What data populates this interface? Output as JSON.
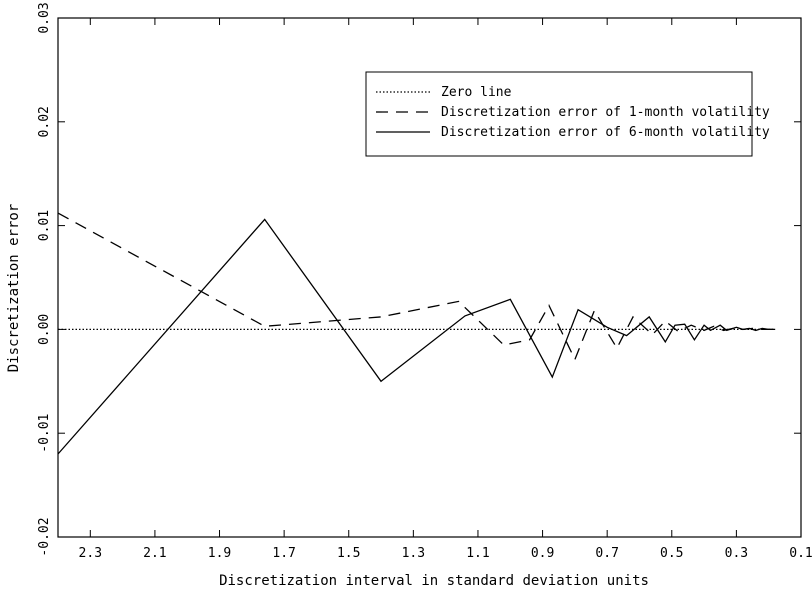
{
  "chart_data": {
    "type": "line",
    "title": "",
    "xlabel": "Discretization interval in standard deviation units",
    "ylabel": "Discretization error",
    "xlim": [
      2.4,
      0.1
    ],
    "ylim": [
      -0.02,
      0.03
    ],
    "x_reversed": true,
    "x_ticks": [
      2.3,
      2.1,
      1.9,
      1.7,
      1.5,
      1.3,
      1.1,
      0.9,
      0.7,
      0.5,
      0.3,
      0.1
    ],
    "x_tick_labels": [
      "2.3",
      "2.1",
      "1.9",
      "1.7",
      "1.5",
      "1.3",
      "1.1",
      "0.9",
      "0.7",
      "0.5",
      "0.3",
      "0.1"
    ],
    "y_ticks": [
      -0.02,
      -0.01,
      0.0,
      0.01,
      0.02,
      0.03
    ],
    "y_tick_labels": [
      "-0.02",
      "-0.01",
      "0.00",
      "0.01",
      "0.02",
      "0.03"
    ],
    "grid": false,
    "legend_position": "top-right",
    "series": [
      {
        "name": "Zero line",
        "style": "dotted",
        "x": [
          2.4,
          0.18
        ],
        "y": [
          0.0,
          0.0
        ]
      },
      {
        "name": "Discretization error of 1-month volatility",
        "style": "dashed",
        "x": [
          2.4,
          1.76,
          1.4,
          1.16,
          1.02,
          0.94,
          0.88,
          0.8,
          0.74,
          0.67,
          0.62,
          0.56,
          0.52,
          0.48,
          0.44,
          0.4,
          0.37,
          0.34,
          0.31,
          0.28,
          0.25,
          0.22,
          0.2,
          0.18
        ],
        "y": [
          0.0112,
          0.0003,
          0.0012,
          0.0027,
          -0.0015,
          -0.001,
          0.0023,
          -0.0029,
          0.0018,
          -0.0018,
          0.0012,
          -0.0005,
          0.0008,
          -0.0002,
          0.0004,
          -0.0001,
          0.0003,
          -0.0001,
          0.0001,
          0.0,
          0.0001,
          0.0,
          0.0,
          0.0
        ]
      },
      {
        "name": "Discretization error of 6-month volatility",
        "style": "solid",
        "x": [
          2.4,
          1.76,
          1.4,
          1.14,
          1.0,
          0.87,
          0.79,
          0.7,
          0.64,
          0.57,
          0.52,
          0.49,
          0.46,
          0.43,
          0.4,
          0.38,
          0.35,
          0.33,
          0.3,
          0.28,
          0.26,
          0.24,
          0.22,
          0.2,
          0.18
        ],
        "y": [
          -0.012,
          0.0106,
          -0.005,
          0.0013,
          0.0029,
          -0.0046,
          0.0019,
          0.0002,
          -0.0006,
          0.0012,
          -0.0012,
          0.0004,
          0.0005,
          -0.001,
          0.0004,
          -0.0001,
          0.0004,
          -0.0001,
          0.0002,
          0.0,
          0.0001,
          -0.0001,
          0.0001,
          0.0,
          0.0
        ]
      }
    ]
  }
}
